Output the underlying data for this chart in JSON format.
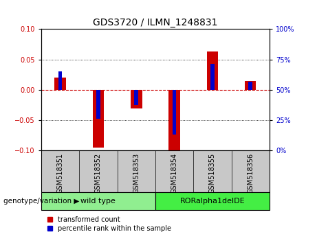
{
  "title": "GDS3720 / ILMN_1248831",
  "samples": [
    "GSM518351",
    "GSM518352",
    "GSM518353",
    "GSM518354",
    "GSM518355",
    "GSM518356"
  ],
  "red_values": [
    0.02,
    -0.095,
    -0.03,
    -0.1,
    0.063,
    0.015
  ],
  "blue_values": [
    0.03,
    -0.048,
    -0.025,
    -0.073,
    0.043,
    0.013
  ],
  "ylim": [
    -0.1,
    0.1
  ],
  "yticks_left": [
    -0.1,
    -0.05,
    0,
    0.05,
    0.1
  ],
  "yticks_right": [
    0,
    25,
    50,
    75,
    100
  ],
  "groups": [
    {
      "label": "wild type",
      "start": 0,
      "end": 3,
      "color": "#90EE90"
    },
    {
      "label": "RORalpha1delDE",
      "start": 3,
      "end": 6,
      "color": "#44EE44"
    }
  ],
  "genotype_label": "genotype/variation",
  "legend_red": "transformed count",
  "legend_blue": "percentile rank within the sample",
  "red_color": "#CC0000",
  "blue_color": "#0000CC",
  "red_bar_width": 0.3,
  "blue_bar_width": 0.1,
  "zero_line_color": "#CC0000",
  "dotted_line_color": "#000000",
  "title_fontsize": 10,
  "tick_fontsize": 7,
  "sample_fontsize": 7,
  "group_fontsize": 8,
  "legend_fontsize": 7,
  "genotype_fontsize": 7.5,
  "xlabel_bg_color": "#C8C8C8",
  "xlabel_sep_color": "#888888"
}
